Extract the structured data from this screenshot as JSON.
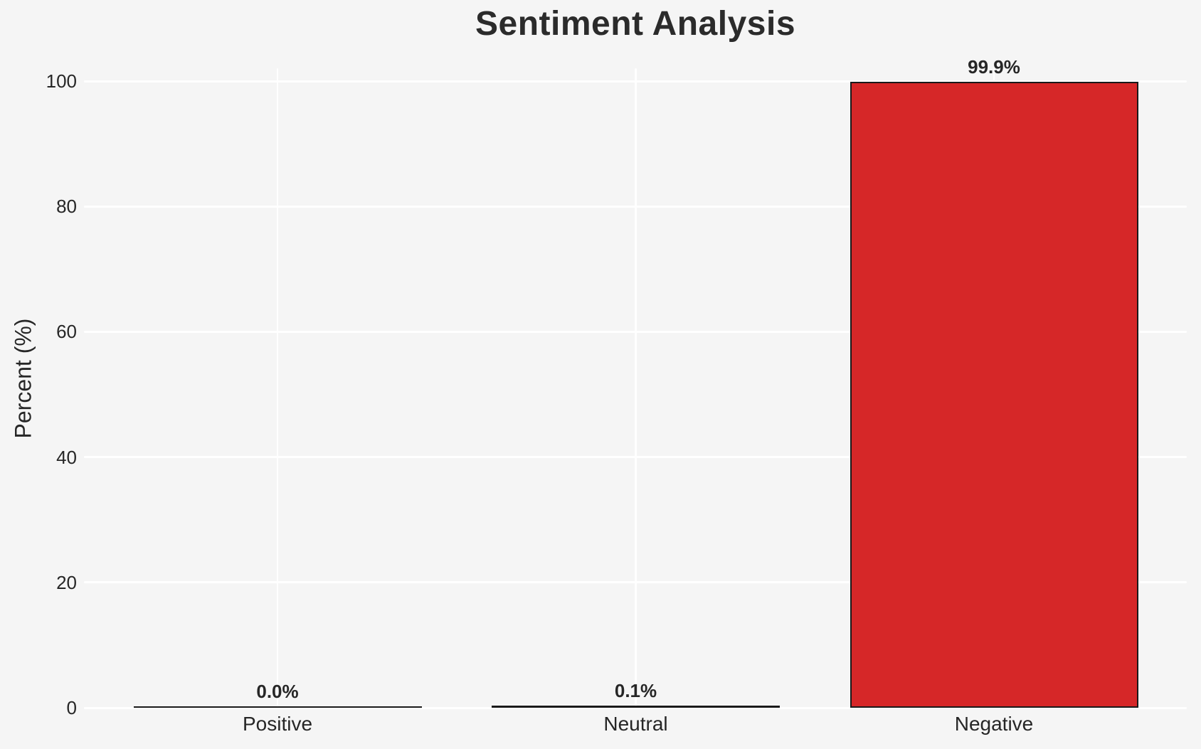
{
  "chart_data": {
    "type": "bar",
    "title": "Sentiment Analysis",
    "xlabel": "",
    "ylabel": "Percent (%)",
    "categories": [
      "Positive",
      "Neutral",
      "Negative"
    ],
    "values": [
      0.0,
      0.1,
      99.9
    ],
    "bar_labels": [
      "0.0%",
      "0.1%",
      "99.9%"
    ],
    "bar_colors": [
      null,
      null,
      "#d62728"
    ],
    "ylim": [
      0,
      100
    ],
    "yticks": [
      0,
      20,
      40,
      60,
      80,
      100
    ],
    "grid": true,
    "legend": false,
    "colors": {
      "background": "#f5f5f5",
      "gridline": "#ffffff",
      "text": "#262626",
      "title_text": "#2b2b2b",
      "bar_edge": "#1a1a1a"
    }
  }
}
